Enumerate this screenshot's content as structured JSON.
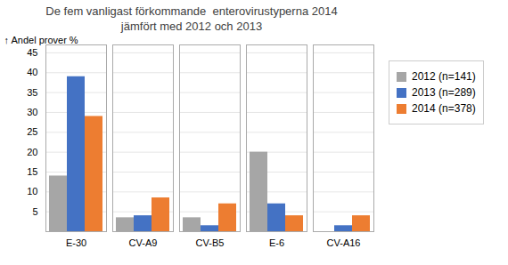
{
  "chart_data": {
    "type": "bar",
    "title": "De fem vanligast förkommande  enterovirustyperna 2014",
    "subtitle": "jämfört med 2012 och 2013",
    "categories": [
      "E-30",
      "CV-A9",
      "CV-B5",
      "E-6",
      "CV-A16"
    ],
    "series": [
      {
        "name": "2012 (n=141)",
        "color": "#A6A6A6",
        "values": [
          14,
          3.5,
          3.5,
          20,
          0
        ]
      },
      {
        "name": "2013 (n=289)",
        "color": "#4472C4",
        "values": [
          39,
          4,
          1.5,
          7,
          1.5
        ]
      },
      {
        "name": "2014 (n=378)",
        "color": "#ED7D31",
        "values": [
          29,
          8.5,
          7,
          4,
          4
        ]
      }
    ],
    "ylabel": "Andel prover %",
    "ylim": [
      0,
      47
    ],
    "yticks": [
      5,
      10,
      15,
      20,
      25,
      30,
      35,
      40,
      45
    ],
    "grid": true,
    "legend": "right"
  }
}
